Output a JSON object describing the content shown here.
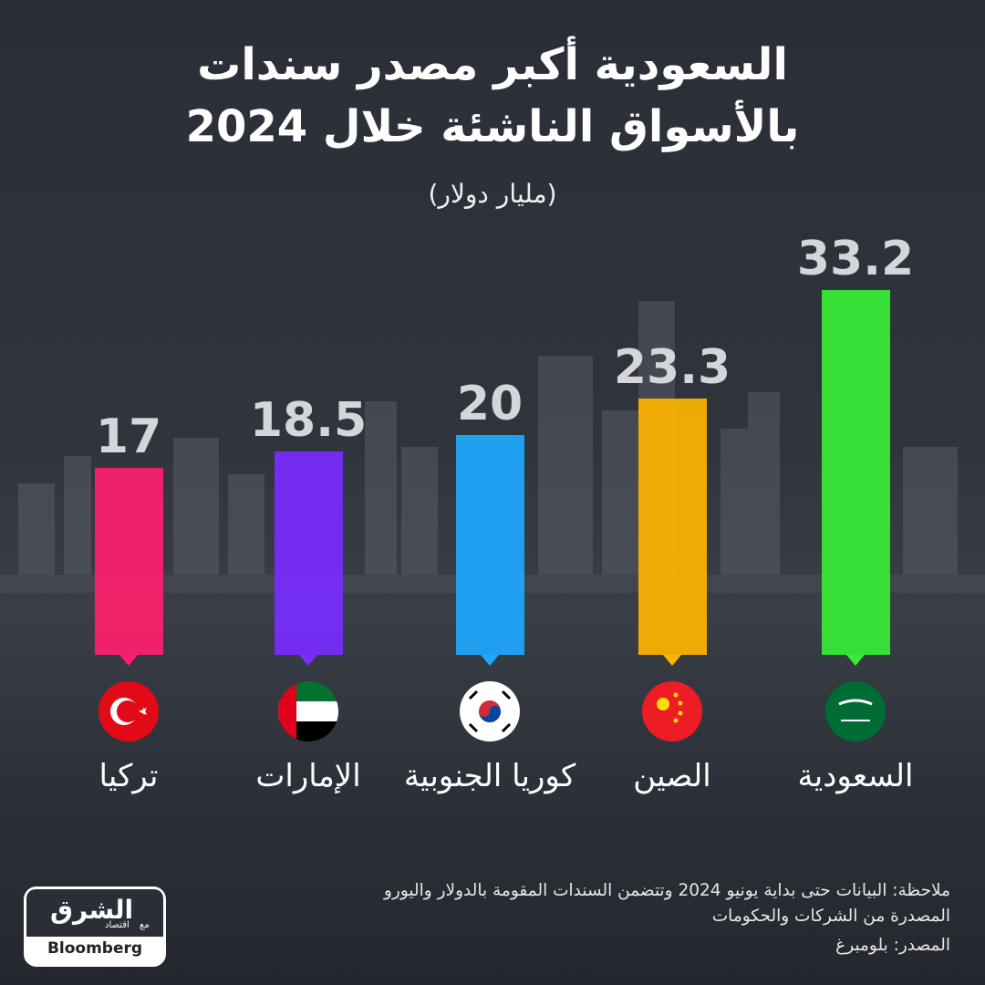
{
  "chart_data": {
    "type": "bar",
    "title": [
      "السعودية أكبر مصدر سندات",
      "بالأسواق الناشئة خلال 2024"
    ],
    "subtitle": "(مليار دولار)",
    "categories": [
      "تركيا",
      "الإمارات",
      "كوريا الجنوبية",
      "الصين",
      "السعودية"
    ],
    "values": [
      17,
      18.5,
      20,
      23.3,
      33.2
    ],
    "colors": [
      "#ff1f6e",
      "#7a2cff",
      "#1ea8ff",
      "#ffb400",
      "#36ee36"
    ]
  },
  "note": [
    "ملاحظة: البيانات حتى بداية يونيو 2024 وتتضمن السندات المقومة بالدولار واليورو",
    "المصدرة من الشركات والحكومات"
  ],
  "source": "المصدر: بلومبرغ",
  "logo": {
    "brand": "الشرق",
    "sub": "اقتصاد",
    "with": "مع",
    "partner": "Bloomberg"
  }
}
